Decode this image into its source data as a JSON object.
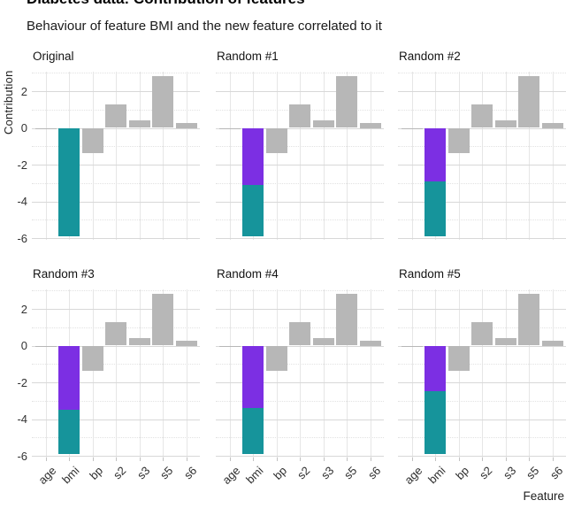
{
  "header": {
    "title": "Diabetes data: Contribution of features",
    "subtitle": "Behaviour of feature BMI and the new feature correlated to it"
  },
  "axes": {
    "y_title": "Contribution",
    "x_title": "Feature"
  },
  "colors": {
    "bar_gray": "#b7b7b7",
    "bar_teal": "#16949b",
    "bar_purple": "#7c2fe3",
    "grid_major": "#d8d8d8",
    "grid_minor": "#e2e2e2",
    "grid_vertical": "#e6e6e6"
  },
  "chart_data": {
    "type": "bar",
    "title": "Diabetes data: Contribution of features",
    "subtitle": "Behaviour of feature BMI and the new feature correlated to it",
    "xlabel": "Feature",
    "ylabel": "Contribution",
    "categories": [
      "age",
      "bmi",
      "bp",
      "s2",
      "s3",
      "s5",
      "s6"
    ],
    "y_ticks": [
      2,
      0,
      -2,
      -4,
      -6
    ],
    "y_minor_ticks": [
      3,
      1,
      -1,
      -3,
      -5
    ],
    "ylim": [
      -6.1,
      3.05
    ],
    "grid": true,
    "legend": "none",
    "facet_layout": {
      "rows": 2,
      "cols": 3
    },
    "shared_values": {
      "age": -0.05,
      "bp": -1.35,
      "s2": 1.3,
      "s3": 0.4,
      "s5": 2.8,
      "s6": 0.25
    },
    "bmi_note": "bmi bar is stacked: purple = new correlated feature portion (0 to bmi_split), teal = bmi portion (bmi_split to bmi_total)",
    "facets": [
      {
        "label": "Original",
        "bmi_split": 0,
        "bmi_total": -5.9
      },
      {
        "label": "Random #1",
        "bmi_split": -3.1,
        "bmi_total": -5.9
      },
      {
        "label": "Random #2",
        "bmi_split": -2.9,
        "bmi_total": -5.9
      },
      {
        "label": "Random #3",
        "bmi_split": -3.5,
        "bmi_total": -5.9
      },
      {
        "label": "Random #4",
        "bmi_split": -3.4,
        "bmi_total": -5.9
      },
      {
        "label": "Random #5",
        "bmi_split": -2.5,
        "bmi_total": -5.9
      }
    ]
  }
}
